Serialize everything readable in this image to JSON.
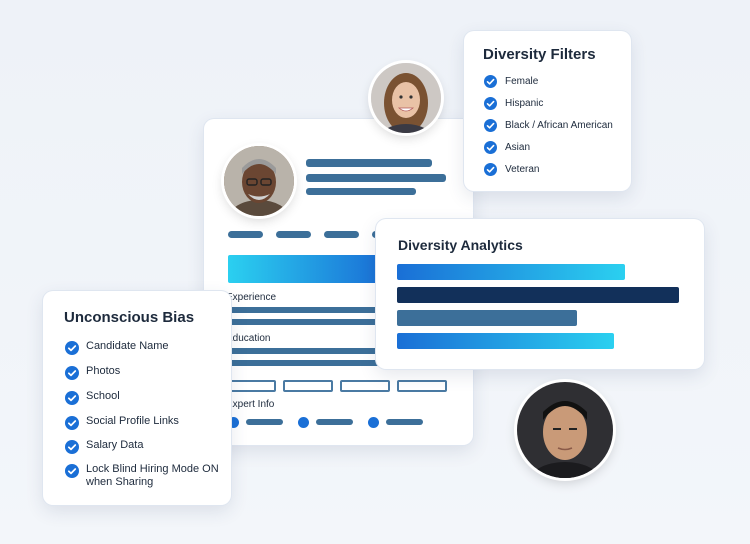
{
  "bias_panel": {
    "title": "Unconscious Bias",
    "items": [
      {
        "label": "Candidate Name"
      },
      {
        "label": "Photos"
      },
      {
        "label": "School"
      },
      {
        "label": "Social Profile Links"
      },
      {
        "label": "Salary Data"
      },
      {
        "label": "Lock Blind Hiring Mode ON\nwhen Sharing"
      }
    ]
  },
  "filters_panel": {
    "title": "Diversity Filters",
    "items": [
      {
        "label": "Female"
      },
      {
        "label": "Hispanic"
      },
      {
        "label": "Black / African American"
      },
      {
        "label": "Asian"
      },
      {
        "label": "Veteran"
      }
    ]
  },
  "analytics_panel": {
    "title": "Diversity Analytics",
    "bars": [
      {
        "fraction": 0.81,
        "color": "gradient-blue"
      },
      {
        "fraction": 1.0,
        "color": "#12305a"
      },
      {
        "fraction": 0.64,
        "color": "#3c6f99"
      },
      {
        "fraction": 0.77,
        "color": "gradient-blue"
      }
    ]
  },
  "profile_card": {
    "experience_label": "Experience",
    "education_label": "Education",
    "expert_info_label": "Expert Info"
  },
  "colors": {
    "accent": "#1a6fd6",
    "navy": "#12305a",
    "steel": "#3c6f99",
    "cyan": "#2bd0f0"
  },
  "icons": {
    "check": "check-circle-icon"
  }
}
